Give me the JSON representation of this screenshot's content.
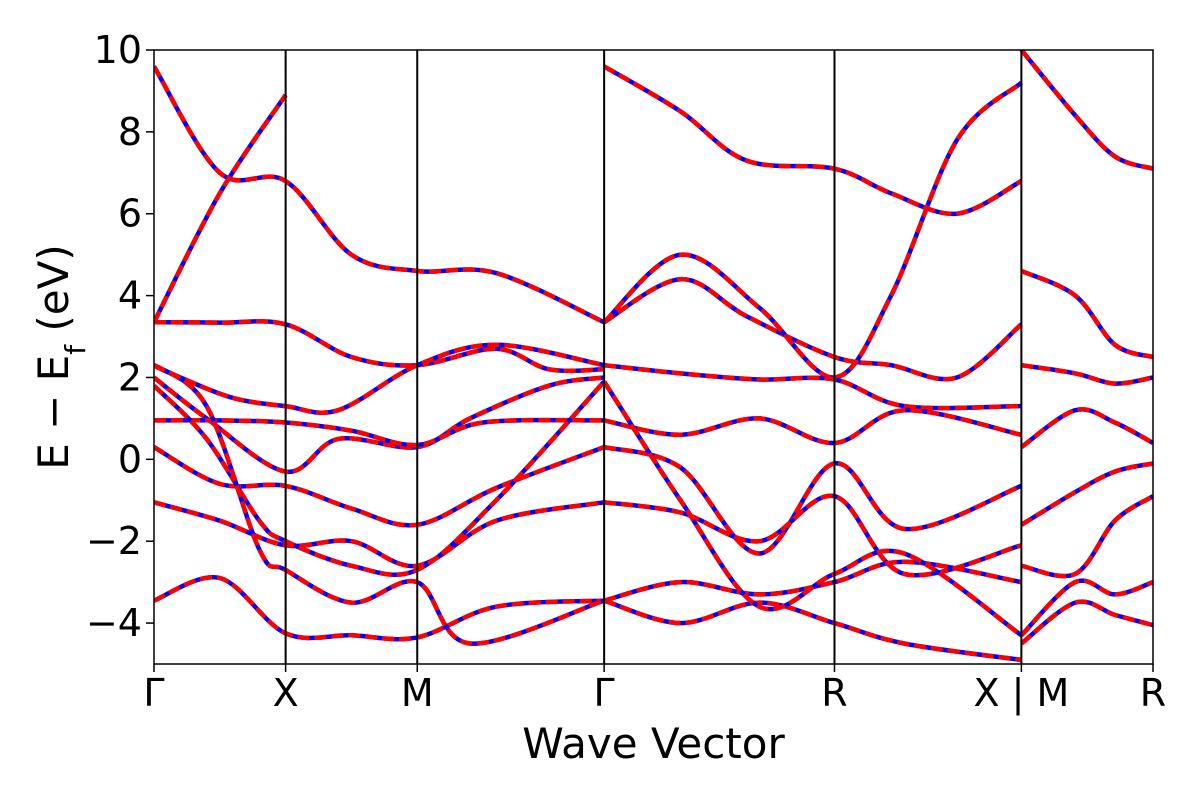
{
  "chart_data": {
    "type": "line",
    "title": "",
    "xlabel": "Wave Vector",
    "ylabel": "E − E_f (eV)",
    "ylabel_parts": {
      "main": "E − E",
      "sub": "f",
      "unit": " (eV)"
    },
    "ylim": [
      -5,
      10
    ],
    "yticks": [
      -4,
      -2,
      0,
      2,
      4,
      6,
      8,
      10
    ],
    "ytick_labels": [
      "−4",
      "−2",
      "0",
      "2",
      "4",
      "6",
      "8",
      "10"
    ],
    "kpath_labels": [
      "Γ",
      "X",
      "M",
      "Γ",
      "R",
      "X | M",
      "R"
    ],
    "kpath_positions": [
      0,
      1,
      2,
      3.42,
      5.17,
      6.59,
      7.59
    ],
    "grid": false,
    "legend": "none",
    "colors": {
      "solid_line": "#0000ff",
      "dashed_line": "#ff0000"
    },
    "series": [
      {
        "x": [
          0,
          0.5,
          1,
          1.5,
          2,
          2.6,
          3,
          3.42
        ],
        "y": [
          3.35,
          3.34,
          3.3,
          2.5,
          2.3,
          2.7,
          2.2,
          2.2
        ]
      },
      {
        "x": [
          0,
          0.5,
          1,
          1.5,
          2,
          2.6,
          3.42
        ],
        "y": [
          9.6,
          7.0,
          6.8,
          5.0,
          4.6,
          4.55,
          3.35
        ]
      },
      {
        "x": [
          0,
          0.5,
          1
        ],
        "y": [
          3.35,
          6.5,
          8.9
        ]
      },
      {
        "x": [
          0,
          0.2,
          0.6,
          1,
          1.4,
          2,
          2.6,
          3.42
        ],
        "y": [
          2.3,
          2.0,
          1.5,
          1.3,
          1.2,
          2.3,
          2.8,
          2.3
        ]
      },
      {
        "x": [
          0,
          0.4,
          1,
          1.4,
          2,
          2.4,
          3,
          3.42
        ],
        "y": [
          2.0,
          1.0,
          -0.3,
          0.5,
          0.3,
          1.0,
          1.8,
          2.0
        ]
      },
      {
        "x": [
          0,
          0.5,
          1,
          1.5,
          2,
          2.5,
          3.42
        ],
        "y": [
          0.95,
          0.95,
          0.9,
          0.7,
          0.35,
          0.9,
          0.95
        ]
      },
      {
        "x": [
          0,
          0.5,
          1,
          1.5,
          2,
          2.6,
          3.42
        ],
        "y": [
          0.3,
          -0.6,
          -0.65,
          -1.2,
          -1.6,
          -0.7,
          0.3
        ]
      },
      {
        "x": [
          0,
          0.5,
          1,
          1.5,
          2,
          2.6,
          3.42
        ],
        "y": [
          -1.05,
          -1.5,
          -2.1,
          -2.0,
          -2.6,
          -1.5,
          -1.05
        ]
      },
      {
        "x": [
          0,
          0.5,
          1,
          1.5,
          2,
          2.6,
          3.42
        ],
        "y": [
          -3.45,
          -2.9,
          -4.25,
          -4.3,
          -4.35,
          -3.6,
          -3.45
        ]
      },
      {
        "x": [
          0,
          0.4,
          0.8,
          1,
          1.5,
          2,
          2.6,
          3.42
        ],
        "y": [
          1.8,
          0.5,
          -1.5,
          -2.0,
          -2.6,
          -2.7,
          -1.0,
          1.9
        ]
      },
      {
        "x": [
          0,
          0.4,
          0.8,
          1,
          1.5,
          2,
          2.4,
          3.42
        ],
        "y": [
          2.3,
          1.3,
          -2.2,
          -2.7,
          -3.5,
          -3.0,
          -4.5,
          -3.45
        ]
      },
      {
        "x": [
          3.42,
          4.0,
          4.5,
          5.17,
          5.6,
          6.1,
          6.59
        ],
        "y": [
          9.6,
          8.5,
          7.3,
          7.1,
          6.5,
          6.0,
          6.8
        ]
      },
      {
        "x": [
          3.42,
          4.0,
          4.5,
          5.17,
          5.6,
          6.1,
          6.59
        ],
        "y": [
          3.35,
          4.4,
          3.5,
          2.5,
          2.3,
          2.0,
          3.3
        ]
      },
      {
        "x": [
          3.42,
          4.0,
          4.6,
          5.17,
          5.6,
          6.1,
          6.59
        ],
        "y": [
          3.35,
          5.0,
          3.7,
          2.0,
          4.0,
          7.8,
          9.2
        ]
      },
      {
        "x": [
          3.42,
          4.0,
          4.6,
          5.17,
          5.7,
          6.59
        ],
        "y": [
          2.3,
          2.1,
          1.95,
          1.95,
          1.3,
          1.3
        ]
      },
      {
        "x": [
          3.42,
          4.0,
          4.6,
          5.17,
          5.7,
          6.59
        ],
        "y": [
          0.95,
          0.6,
          1.0,
          0.4,
          1.2,
          0.6
        ]
      },
      {
        "x": [
          3.42,
          4.0,
          4.6,
          5.17,
          5.7,
          6.59
        ],
        "y": [
          0.3,
          -0.2,
          -2.3,
          -0.1,
          -1.7,
          -0.65
        ]
      },
      {
        "x": [
          3.42,
          4.0,
          4.6,
          5.17,
          5.7,
          6.59
        ],
        "y": [
          -1.05,
          -1.3,
          -2.0,
          -0.9,
          -2.8,
          -2.1
        ]
      },
      {
        "x": [
          3.42,
          4.0,
          4.6,
          5.17,
          5.7,
          6.59
        ],
        "y": [
          -3.45,
          -3.0,
          -3.3,
          -3.0,
          -2.5,
          -3.0
        ]
      },
      {
        "x": [
          3.42,
          4.0,
          4.6,
          5.17,
          5.7,
          6.59
        ],
        "y": [
          -3.45,
          -4.0,
          -3.5,
          -4.0,
          -4.5,
          -4.9
        ]
      },
      {
        "x": [
          3.42,
          4.0,
          4.6,
          5.17,
          5.7,
          6.59
        ],
        "y": [
          1.9,
          -1.0,
          -3.6,
          -2.8,
          -2.3,
          -4.3
        ]
      },
      {
        "x": [
          6.59,
          7.0,
          7.3,
          7.59
        ],
        "y": [
          10.0,
          8.4,
          7.4,
          7.1
        ]
      },
      {
        "x": [
          6.59,
          7.0,
          7.3,
          7.59
        ],
        "y": [
          4.6,
          4.0,
          2.8,
          2.5
        ]
      },
      {
        "x": [
          6.59,
          7.0,
          7.3,
          7.59
        ],
        "y": [
          2.3,
          2.1,
          1.85,
          2.0
        ]
      },
      {
        "x": [
          6.59,
          7.0,
          7.3,
          7.59
        ],
        "y": [
          0.3,
          1.2,
          0.9,
          0.4
        ]
      },
      {
        "x": [
          6.59,
          7.0,
          7.3,
          7.59
        ],
        "y": [
          -1.6,
          -0.8,
          -0.3,
          -0.1
        ]
      },
      {
        "x": [
          6.59,
          7.0,
          7.3,
          7.59
        ],
        "y": [
          -2.6,
          -2.8,
          -1.5,
          -0.9
        ]
      },
      {
        "x": [
          6.59,
          7.0,
          7.3,
          7.59
        ],
        "y": [
          -4.3,
          -3.0,
          -3.3,
          -3.0
        ]
      },
      {
        "x": [
          6.59,
          7.0,
          7.3,
          7.59
        ],
        "y": [
          -4.5,
          -3.5,
          -3.8,
          -4.05
        ]
      }
    ]
  }
}
